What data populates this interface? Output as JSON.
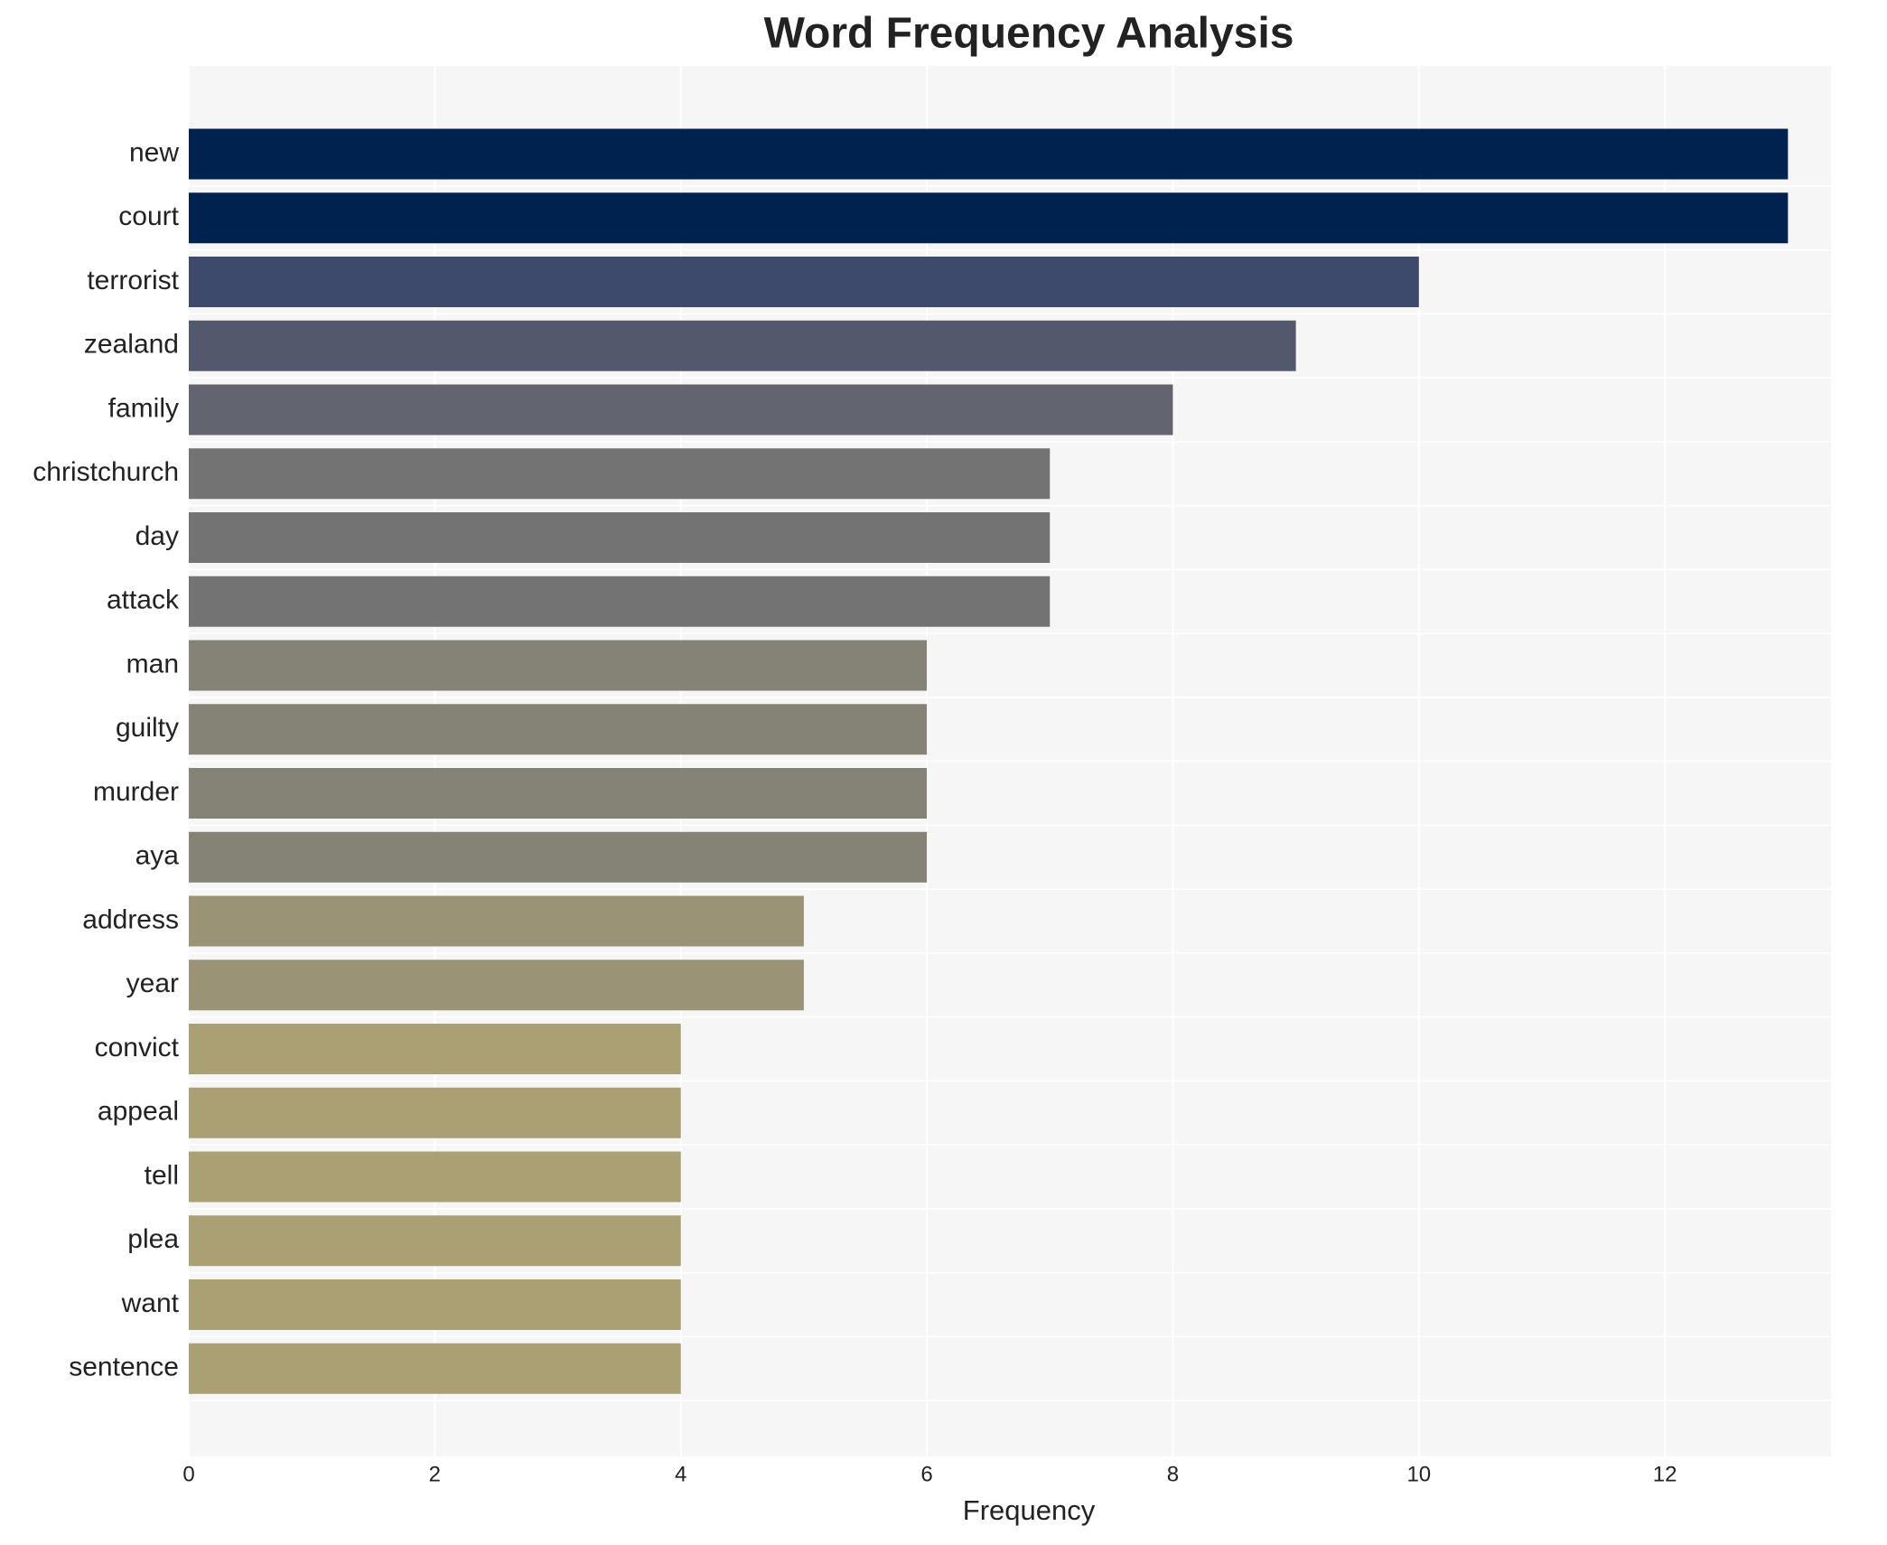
{
  "chart_data": {
    "type": "barh",
    "title": "Word Frequency Analysis",
    "x_label": "Frequency",
    "categories": [
      "new",
      "court",
      "terrorist",
      "zealand",
      "family",
      "christchurch",
      "day",
      "attack",
      "man",
      "guilty",
      "murder",
      "aya",
      "address",
      "year",
      "convict",
      "appeal",
      "tell",
      "plea",
      "want",
      "sentence"
    ],
    "values": [
      13,
      13,
      10,
      9,
      8,
      7,
      7,
      7,
      6,
      6,
      6,
      6,
      5,
      5,
      4,
      4,
      4,
      4,
      4,
      4
    ],
    "colors": [
      "#00224e",
      "#00224e",
      "#3d4a6b",
      "#53596d",
      "#62646f",
      "#737373",
      "#737373",
      "#737373",
      "#858276",
      "#858276",
      "#858276",
      "#858276",
      "#9a9376",
      "#9a9376",
      "#aaa073",
      "#aaa073",
      "#aaa073",
      "#aaa073",
      "#aaa073",
      "#aaa073"
    ],
    "xlim": [
      0,
      13.35
    ],
    "xticks": [
      0,
      2,
      4,
      6,
      8,
      10,
      12
    ],
    "grid": true
  }
}
